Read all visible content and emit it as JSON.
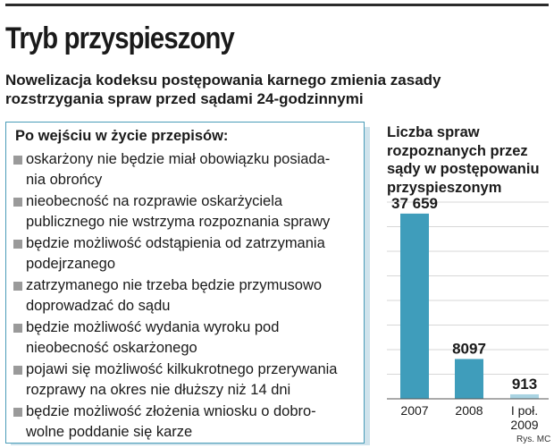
{
  "header": {
    "title": "Tryb przyspieszony",
    "subtitle_line1": "Nowelizacja kodeksu postępowania karnego zmienia zasady",
    "subtitle_line2": "rozstrzygania spraw przed sądami 24-godzinnymi"
  },
  "panel": {
    "heading": "Po wejściu w życie przepisów:",
    "items": [
      {
        "l1": "oskarżony nie będzie miał obowiązku posiada-",
        "l2": "nia obrońcy"
      },
      {
        "l1": "nieobecność na rozprawie oskarżyciela",
        "l2": "publicznego nie wstrzyma rozpoznania sprawy"
      },
      {
        "l1": "będzie możliwość odstąpienia od zatrzymania",
        "l2": "podejrzanego"
      },
      {
        "l1": "zatrzymanego nie trzeba będzie przymusowo",
        "l2": "doprowadzać do sądu"
      },
      {
        "l1": "będzie możliwość wydania wyroku pod",
        "l2": "nieobecność oskarżonego"
      },
      {
        "l1": "pojawi się możliwość kilkukrotnego przerywania",
        "l2": "rozprawy na okres nie dłuższy niż 14 dni"
      },
      {
        "l1": "będzie możliwość złożenia wniosku o dobro-",
        "l2": "wolne poddanie się karze"
      }
    ],
    "border_color": "#4a9cb8",
    "shadow_color": "#cfe3ec",
    "bullet_color": "#9a9a9a"
  },
  "chart_data": {
    "type": "bar",
    "title_line1": "Liczba spraw",
    "title_line2": "rozpoznanych przez",
    "title_line3": "sądy w postępowaniu",
    "title_line4": "przyspieszonym",
    "categories": [
      "2007",
      "2008",
      "I poł. 2009"
    ],
    "category_lines": [
      [
        "2007"
      ],
      [
        "2008"
      ],
      [
        "I poł.",
        "2009"
      ]
    ],
    "values": [
      37659,
      8097,
      913
    ],
    "value_labels": [
      "37 659",
      "8097",
      "913"
    ],
    "ylim": [
      0,
      40000
    ],
    "grid": true,
    "bar_color": "#3f9dbb",
    "bar_light_color": "#a9d3e2",
    "grid_color": "#d7d7d7"
  },
  "credit": "Rys. MC"
}
